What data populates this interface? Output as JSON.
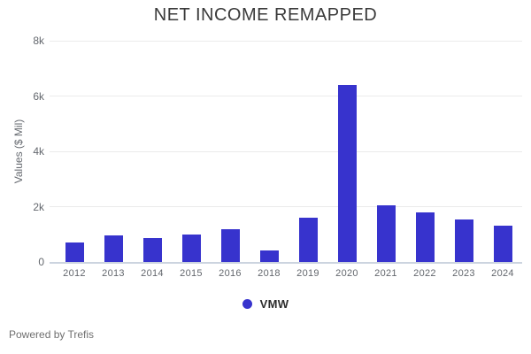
{
  "title": "NET INCOME REMAPPED",
  "legend": {
    "label": "VMW"
  },
  "footer": {
    "text": "Powered by Trefis"
  },
  "colors": {
    "bar": "#3733cd",
    "grid": "#ebebeb",
    "axis_line": "#ccd4df",
    "title_text": "#3a3a3a",
    "tick_text": "#63676d",
    "footer_text": "#6f6f6f"
  },
  "chart_data": {
    "type": "bar",
    "title": "NET INCOME REMAPPED",
    "xlabel": "",
    "ylabel": "Values ($ Mil)",
    "categories": [
      "2012",
      "2013",
      "2014",
      "2015",
      "2016",
      "2018",
      "2019",
      "2020",
      "2021",
      "2022",
      "2023",
      "2024"
    ],
    "series": [
      {
        "name": "VMW",
        "color": "#3733cd",
        "values": [
          720,
          970,
          860,
          990,
          1200,
          410,
          1610,
          6390,
          2060,
          1790,
          1550,
          1310
        ]
      }
    ],
    "ylim": [
      0,
      8000
    ],
    "ytick_values": [
      0,
      2000,
      4000,
      6000,
      8000
    ],
    "ytick_labels": [
      "0",
      "2k",
      "4k",
      "6k",
      "8k"
    ],
    "grid": true,
    "legend_position": "bottom"
  }
}
